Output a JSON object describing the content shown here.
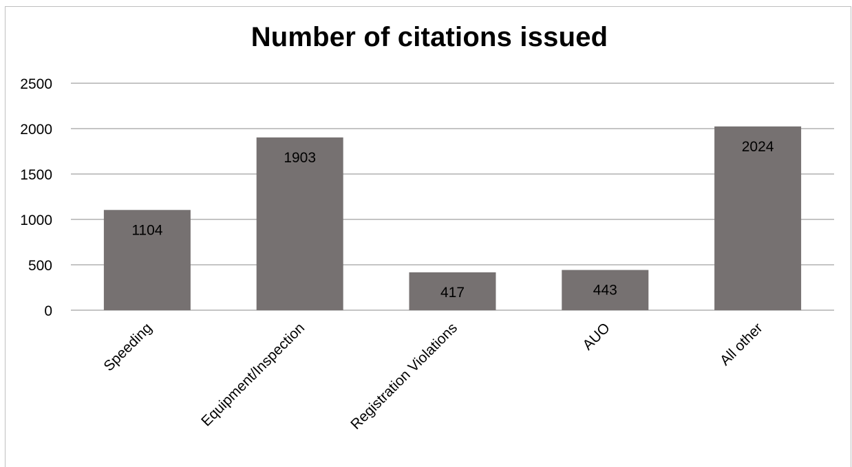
{
  "chart_data": {
    "type": "bar",
    "title": "Number of citations issued",
    "categories": [
      "Speeding",
      "Equipment/Inspection",
      "Registration Violations",
      "AUO",
      "All other"
    ],
    "values": [
      1104,
      1903,
      417,
      443,
      2024
    ],
    "data_labels": [
      "1104",
      "1903",
      "417",
      "443",
      "2024"
    ],
    "xlabel": "",
    "ylabel": "",
    "ylim": [
      0,
      2500
    ],
    "yticks": [
      0,
      500,
      1000,
      1500,
      2000,
      2500
    ],
    "ytick_labels": [
      "0",
      "500",
      "1000",
      "1500",
      "2000",
      "2500"
    ],
    "grid": true,
    "legend": "none",
    "bar_color": "#767171",
    "grid_color": "#898989"
  }
}
